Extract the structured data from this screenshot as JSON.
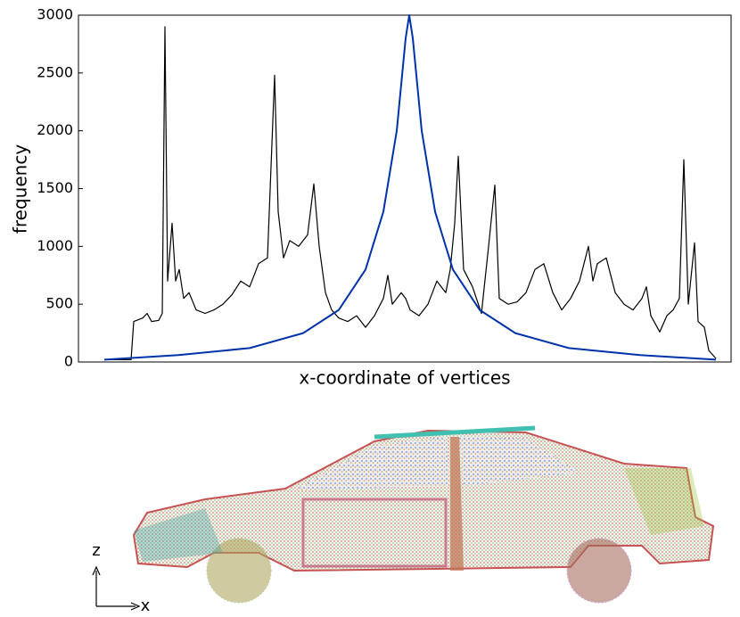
{
  "chart_data": {
    "type": "line",
    "ylabel": "frequency",
    "xlabel": "x-coordinate of vertices",
    "xlim": [
      0,
      732
    ],
    "ylim": [
      0,
      3000
    ],
    "yticks": [
      0,
      500,
      1000,
      1500,
      2000,
      2500,
      3000
    ],
    "grid": false,
    "series": [
      {
        "color": "#000000",
        "x": [
          29,
          59,
          62,
          72,
          77,
          82,
          90,
          94,
          97,
          100,
          105,
          109,
          113,
          118,
          124,
          132,
          142,
          152,
          162,
          172,
          182,
          192,
          202,
          212,
          220,
          224,
          230,
          237,
          247,
          257,
          264,
          270,
          277,
          284,
          292,
          302,
          312,
          322,
          332,
          342,
          347,
          352,
          362,
          367,
          372,
          382,
          392,
          402,
          412,
          417,
          422,
          426,
          432,
          442,
          452,
          460,
          467,
          472,
          482,
          492,
          502,
          512,
          522,
          532,
          542,
          552,
          562,
          572,
          577,
          582,
          592,
          602,
          612,
          622,
          632,
          637,
          642,
          652,
          660,
          667,
          674,
          679,
          684,
          691,
          695,
          702,
          707,
          715
        ],
        "values": [
          20,
          20,
          350,
          380,
          420,
          350,
          360,
          420,
          2900,
          700,
          1200,
          700,
          800,
          550,
          600,
          450,
          420,
          450,
          500,
          580,
          700,
          650,
          850,
          900,
          2480,
          1300,
          900,
          1050,
          1000,
          1100,
          1540,
          1000,
          600,
          450,
          380,
          350,
          400,
          300,
          400,
          550,
          750,
          500,
          600,
          550,
          450,
          400,
          500,
          700,
          600,
          800,
          1200,
          1780,
          800,
          650,
          420,
          1000,
          1530,
          550,
          500,
          520,
          600,
          800,
          850,
          600,
          450,
          550,
          700,
          1000,
          700,
          850,
          900,
          600,
          500,
          450,
          550,
          650,
          400,
          260,
          400,
          450,
          550,
          1750,
          500,
          1030,
          350,
          300,
          100,
          30
        ]
      },
      {
        "color": "#0033aa",
        "x": [
          29,
          112,
          192,
          252,
          292,
          322,
          342,
          357,
          367,
          371,
          375,
          385,
          400,
          420,
          450,
          490,
          550,
          630,
          715
        ],
        "values": [
          20,
          60,
          120,
          250,
          450,
          800,
          1300,
          2000,
          2800,
          3000,
          2800,
          2000,
          1300,
          800,
          450,
          250,
          120,
          60,
          20
        ]
      }
    ],
    "annotations": [
      "z",
      "x"
    ]
  }
}
